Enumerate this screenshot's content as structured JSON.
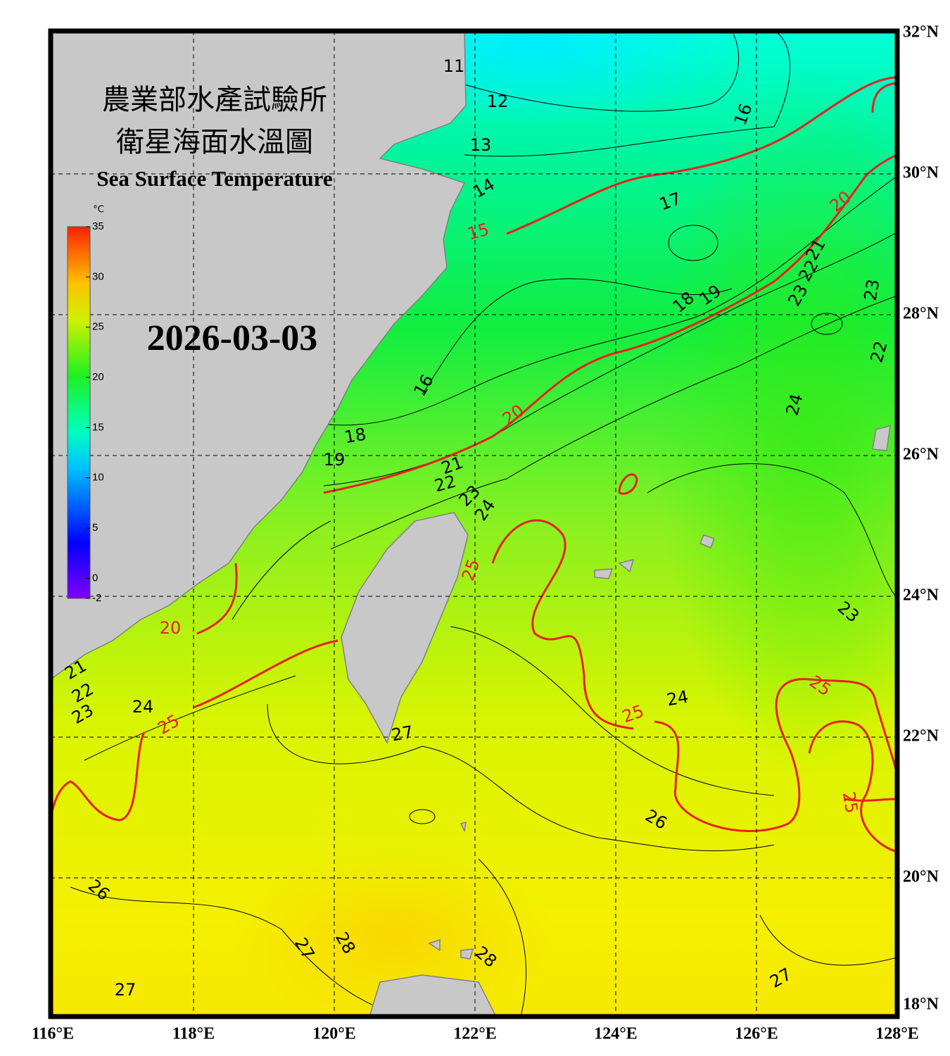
{
  "header": {
    "title_zh": "農業部水產試驗所",
    "subtitle_zh": "衛星海面水溫圖",
    "title_en": "Sea Surface Temperature"
  },
  "date": "2026-03-03",
  "colorbar": {
    "unit": "°C",
    "ticks": [
      35,
      30,
      25,
      20,
      15,
      10,
      5,
      0,
      -2
    ]
  },
  "map": {
    "lon_ticks": [
      {
        "value": 116,
        "label": "116°E"
      },
      {
        "value": 118,
        "label": "118°E"
      },
      {
        "value": 120,
        "label": "120°E"
      },
      {
        "value": 122,
        "label": "122°E"
      },
      {
        "value": 124,
        "label": "124°E"
      },
      {
        "value": 126,
        "label": "126°E"
      },
      {
        "value": 128,
        "label": "128°E"
      }
    ],
    "lat_ticks": [
      {
        "value": 32,
        "label": "32°N"
      },
      {
        "value": 30,
        "label": "30°N"
      },
      {
        "value": 28,
        "label": "28°N"
      },
      {
        "value": 26,
        "label": "26°N"
      },
      {
        "value": 24,
        "label": "24°N"
      },
      {
        "value": 22,
        "label": "22°N"
      },
      {
        "value": 20,
        "label": "20°N"
      },
      {
        "value": 18,
        "label": "18°N"
      }
    ]
  },
  "contour_labels": [
    11,
    12,
    13,
    14,
    15,
    16,
    17,
    18,
    19,
    20,
    21,
    22,
    23,
    23,
    22,
    24,
    16,
    20,
    18,
    19,
    21,
    22,
    23,
    24,
    25,
    20,
    21,
    22,
    23,
    24,
    25,
    27,
    25,
    24,
    25,
    25,
    26,
    23,
    26,
    27,
    28,
    28,
    27,
    27
  ]
}
